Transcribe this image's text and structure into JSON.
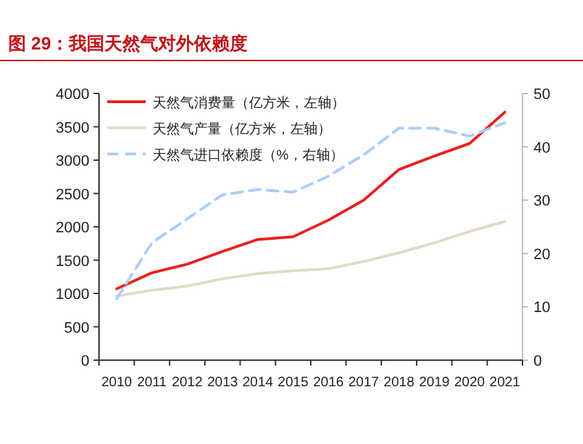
{
  "chart_data": {
    "type": "line",
    "title": "图 29：我国天然气对外依赖度",
    "categories": [
      "2010",
      "2011",
      "2012",
      "2013",
      "2014",
      "2015",
      "2016",
      "2017",
      "2018",
      "2019",
      "2020",
      "2021"
    ],
    "series": [
      {
        "name": "天然气消费量（亿方米，左轴）",
        "color": "#e8201c",
        "line_style": "solid",
        "values": [
          1070,
          1310,
          1440,
          1630,
          1810,
          1850,
          2100,
          2400,
          2860,
          3060,
          3250,
          3720
        ]
      },
      {
        "name": "天然气产量（亿方米，左轴）",
        "color": "#e2d9c6",
        "line_style": "solid",
        "values": [
          960,
          1050,
          1110,
          1220,
          1300,
          1340,
          1370,
          1480,
          1610,
          1760,
          1930,
          2080
        ]
      },
      {
        "name": "天然气进口依赖度（%，右轴）",
        "color": "#aaccff",
        "line_style": "dashed",
        "axis": "y2",
        "values": [
          11.5,
          22,
          26.5,
          31,
          32,
          31.5,
          34.5,
          38.5,
          43.5,
          43.5,
          42,
          44.5
        ]
      }
    ],
    "ylim": [
      0,
      4000
    ],
    "yticks": [
      0,
      500,
      1000,
      1500,
      2000,
      2500,
      3000,
      3500,
      4000
    ],
    "y2lim": [
      0,
      50
    ],
    "y2ticks": [
      0,
      10,
      20,
      30,
      40,
      50
    ],
    "grid": false,
    "legend": "top left",
    "marker": "none"
  }
}
